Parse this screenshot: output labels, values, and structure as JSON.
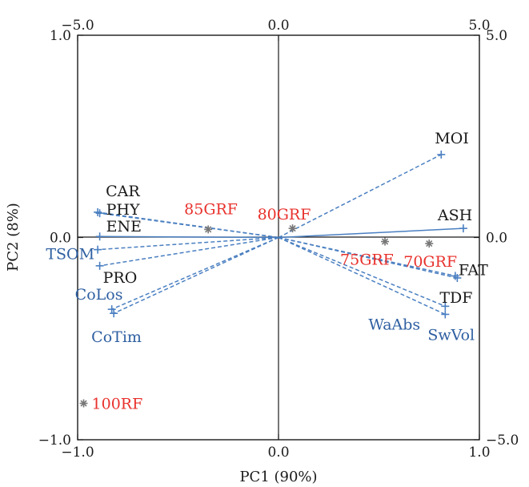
{
  "chart_data": {
    "type": "scatter",
    "subtype": "biplot",
    "title": "",
    "xlabel": "PC1 (90%)",
    "ylabel": "PC2 (8%)",
    "xlim": [
      -1.0,
      1.0
    ],
    "ylim": [
      -1.0,
      1.0
    ],
    "x_ticks": [
      "−1.0",
      "0.0",
      "1.0"
    ],
    "y_ticks": [
      "−1.0",
      "0.0",
      "1.0"
    ],
    "x2lim": [
      -5.0,
      5.0
    ],
    "y2lim": [
      -5.0,
      5.0
    ],
    "x2_ticks": [
      "−5.0",
      "0.0",
      "5.0"
    ],
    "y2_ticks": [
      "−5.0",
      "0.0",
      "5.0"
    ],
    "grid": false,
    "colors": {
      "variable": "#4a7fc1",
      "sample": "#777777",
      "label_blue": "#2e5fa1",
      "label_red": "#e8312c",
      "label_dark": "#1a1a1a"
    },
    "variables": [
      {
        "name": "MOI",
        "x": 0.81,
        "y": 0.41,
        "color": "dark",
        "style": "dashed"
      },
      {
        "name": "ASH",
        "x": 0.92,
        "y": 0.045,
        "color": "dark",
        "style": "solid"
      },
      {
        "name": "FAT",
        "x": 0.88,
        "y": -0.19,
        "color": "dark",
        "style": "dashed"
      },
      {
        "name": "TDF",
        "x": 0.89,
        "y": -0.2,
        "color": "dark",
        "style": "dashed"
      },
      {
        "name": "WaAbs",
        "x": 0.83,
        "y": -0.34,
        "color": "blue",
        "style": "dashed"
      },
      {
        "name": "SwVol",
        "x": 0.83,
        "y": -0.38,
        "color": "blue",
        "style": "dashed"
      },
      {
        "name": "CAR",
        "x": -0.9,
        "y": 0.125,
        "color": "dark",
        "style": "dashed"
      },
      {
        "name": "PHY",
        "x": -0.89,
        "y": 0.12,
        "color": "dark",
        "style": "dashed"
      },
      {
        "name": "ENE",
        "x": -0.89,
        "y": 0.005,
        "color": "dark",
        "style": "solid"
      },
      {
        "name": "TSOM",
        "x": -0.9,
        "y": -0.06,
        "color": "blue",
        "style": "dashed"
      },
      {
        "name": "PRO",
        "x": -0.89,
        "y": -0.14,
        "color": "dark",
        "style": "dashed"
      },
      {
        "name": "CoLos",
        "x": -0.83,
        "y": -0.355,
        "color": "blue",
        "style": "dashed"
      },
      {
        "name": "CoTim",
        "x": -0.82,
        "y": -0.375,
        "color": "blue",
        "style": "dashed"
      }
    ],
    "samples": [
      {
        "name": "85GRF",
        "x": -0.35,
        "y": 0.04
      },
      {
        "name": "80GRF",
        "x": 0.07,
        "y": 0.045
      },
      {
        "name": "75GRF",
        "x": 0.53,
        "y": -0.02
      },
      {
        "name": "70GRF",
        "x": 0.75,
        "y": -0.03
      },
      {
        "name": "100RF",
        "x": -0.97,
        "y": -0.82
      }
    ]
  }
}
